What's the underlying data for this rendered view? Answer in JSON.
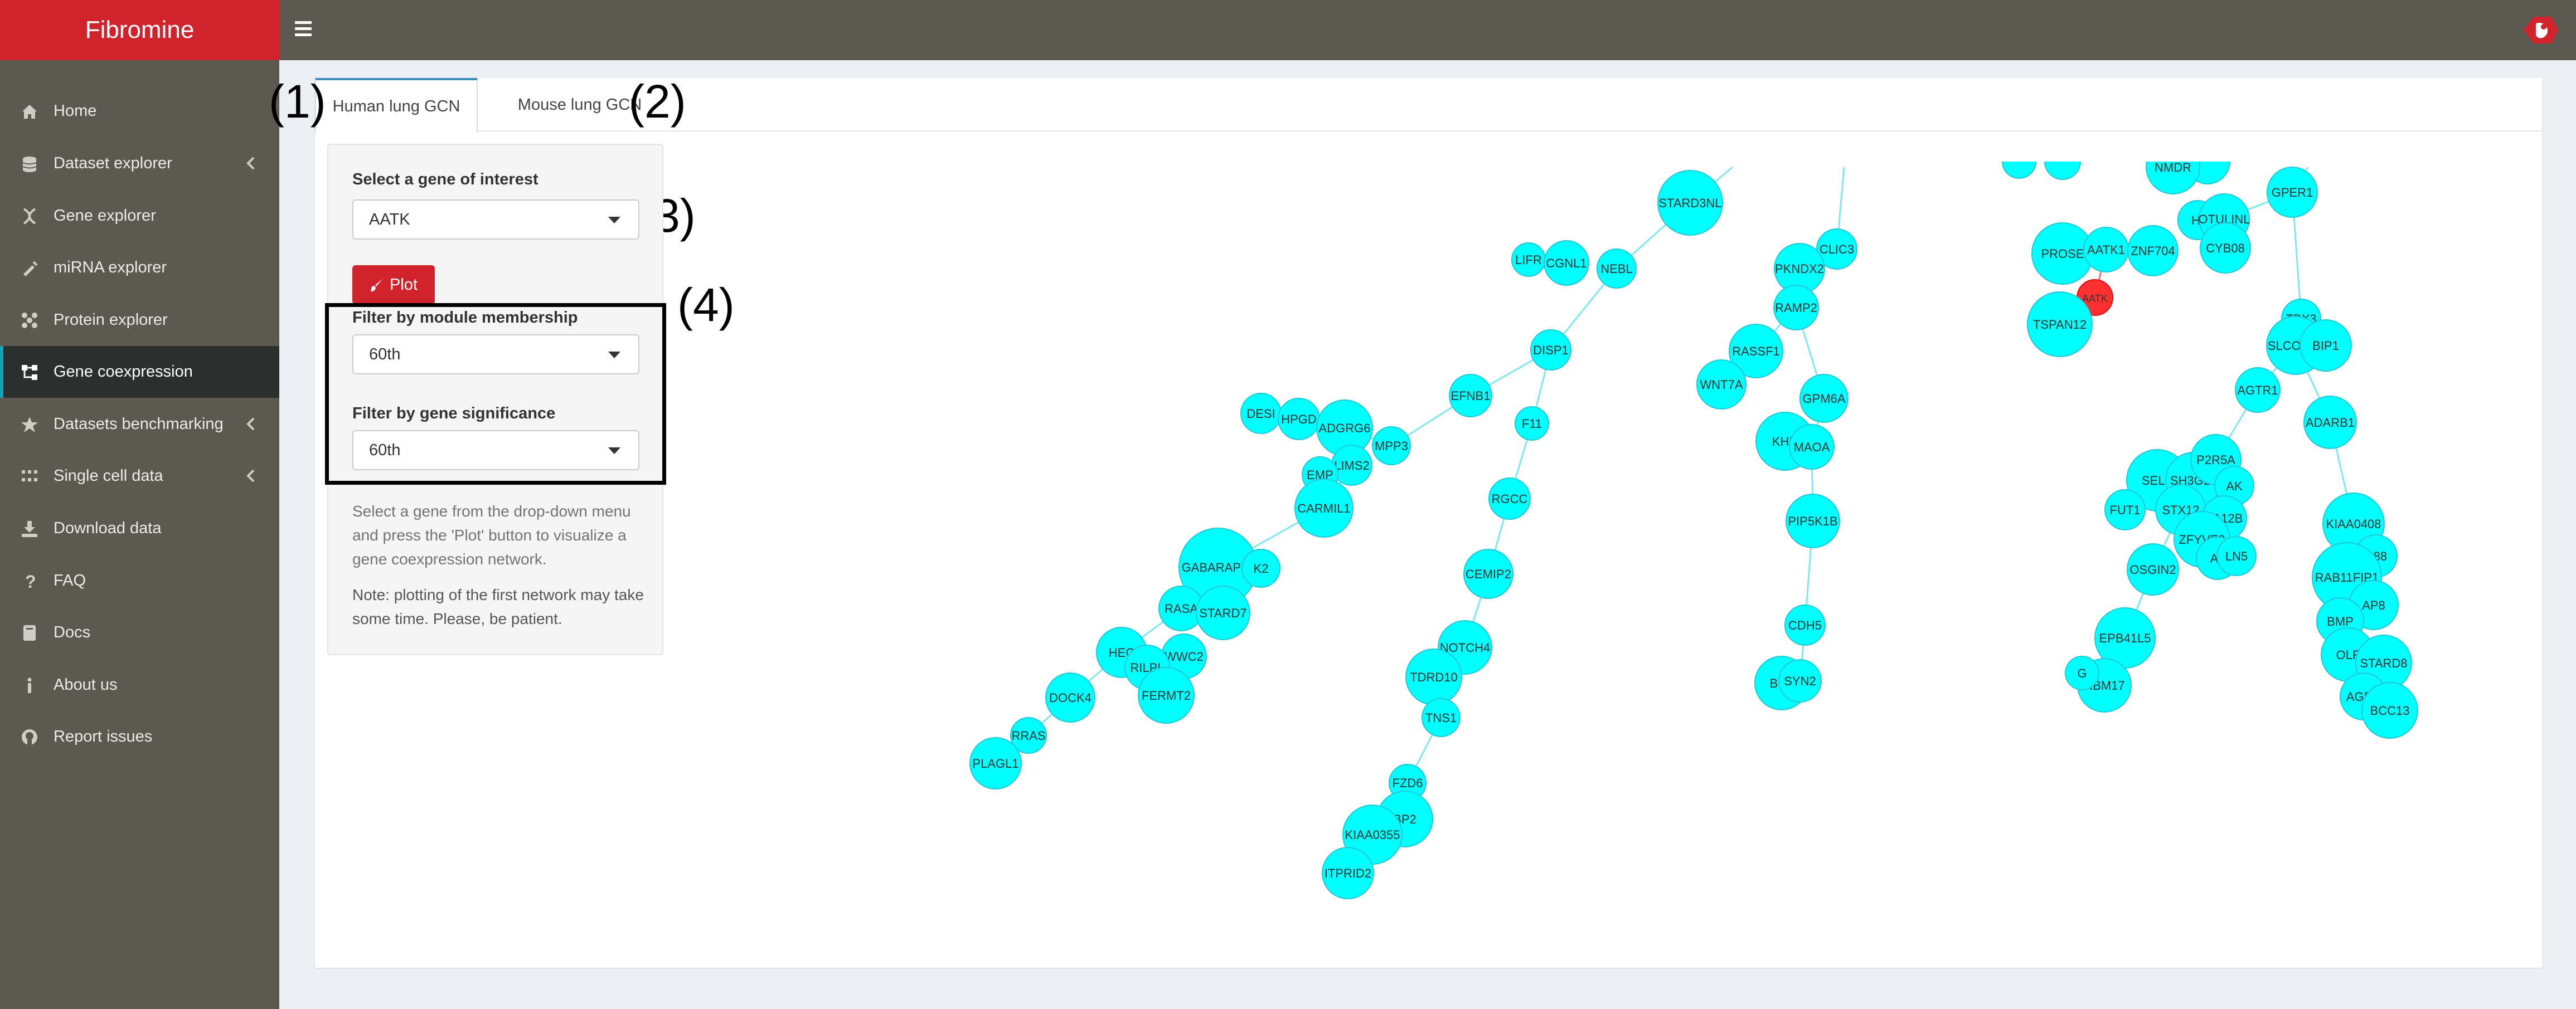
{
  "app": {
    "title": "Fibromine"
  },
  "sidebar": {
    "items": [
      {
        "label": "Home",
        "icon": "home-icon"
      },
      {
        "label": "Dataset explorer",
        "icon": "database-icon",
        "expandable": true
      },
      {
        "label": "Gene explorer",
        "icon": "dna-icon"
      },
      {
        "label": "miRNA explorer",
        "icon": "syringe-icon"
      },
      {
        "label": "Protein explorer",
        "icon": "protein-icon"
      },
      {
        "label": "Gene coexpression",
        "icon": "network-icon",
        "active": true
      },
      {
        "label": "Datasets benchmarking",
        "icon": "star-icon",
        "expandable": true
      },
      {
        "label": "Single cell data",
        "icon": "grid-icon",
        "expandable": true
      },
      {
        "label": "Download data",
        "icon": "download-icon"
      },
      {
        "label": "FAQ",
        "icon": "question-icon"
      },
      {
        "label": "Docs",
        "icon": "book-icon"
      },
      {
        "label": "About us",
        "icon": "info-icon"
      },
      {
        "label": "Report issues",
        "icon": "github-icon"
      }
    ]
  },
  "tabs": [
    {
      "label": "Human lung GCN",
      "active": true,
      "annotation": "(1)"
    },
    {
      "label": "Mouse lung GCN",
      "active": false,
      "annotation": "(2)"
    }
  ],
  "controls": {
    "gene_label": "Select a gene of interest",
    "gene_value": "AATK",
    "gene_annotation": "(3)",
    "plot_label": "Plot",
    "filter_annotation": "(4)",
    "module_label": "Filter by module membership",
    "module_value": "60th",
    "significance_label": "Filter by gene significance",
    "significance_value": "60th",
    "help_text": "Select a gene from the drop-down menu and press the 'Plot' button to visualize a gene coexpression network.",
    "note_text": "Note: plotting of the first network may take some time. Please, be patient."
  },
  "colors": {
    "brand": "#d0232c",
    "node": "#00ffff",
    "node_border": "#1fc9d6",
    "selected_node": "#ff3030",
    "edge": "#7fe8ee"
  },
  "network": {
    "selected": "AATK",
    "nodes": [
      "STARD3NL",
      "LIFR",
      "CGNL1",
      "NEBL",
      "DISP1",
      "EFNB1",
      "F11",
      "RGCC",
      "CEMIP2",
      "NOTCH4",
      "TDRD10",
      "TNS1",
      "FZD6",
      "BP2",
      "KIAA0355",
      "ITPRID2",
      "DESI",
      "HPGD",
      "ADGRG6",
      "MPP3",
      "LIMS2",
      "EMP",
      "CARMIL1",
      "GABARAPL1",
      "K2",
      "RASA",
      "STARD7",
      "HEC",
      "WWC2",
      "RILPL",
      "FERMT2",
      "DOCK4",
      "RRAS",
      "PLAGL1",
      "CLIC3",
      "PKNDX2",
      "RAMP2",
      "RASSF1",
      "WNT7A",
      "GPM6A",
      "KHD",
      "MAOA",
      "PIP5K1B",
      "CDH5",
      "BCL",
      "SYN2",
      "NMDR",
      "GPER1",
      "PROSE",
      "AATK1",
      "ZNF704",
      "HI",
      "OTULINL",
      "CYB08",
      "AATK",
      "TSPAN12",
      "TBX3",
      "SLCO4C1",
      "BIP1",
      "AGTR1",
      "ADARB1",
      "SELE",
      "SH3GL3",
      "P2R5A",
      "AK",
      "FUT1",
      "STX12",
      "PA12B",
      "ZFYVE9",
      "A2",
      "LN5",
      "OSGIN2",
      "EPB41L5",
      "RBM17",
      "G",
      "KIAA0408",
      "C88",
      "RAB11FIP1",
      "AP8",
      "BMP",
      "OLF",
      "STARD8",
      "AGER",
      "BCC13"
    ]
  }
}
